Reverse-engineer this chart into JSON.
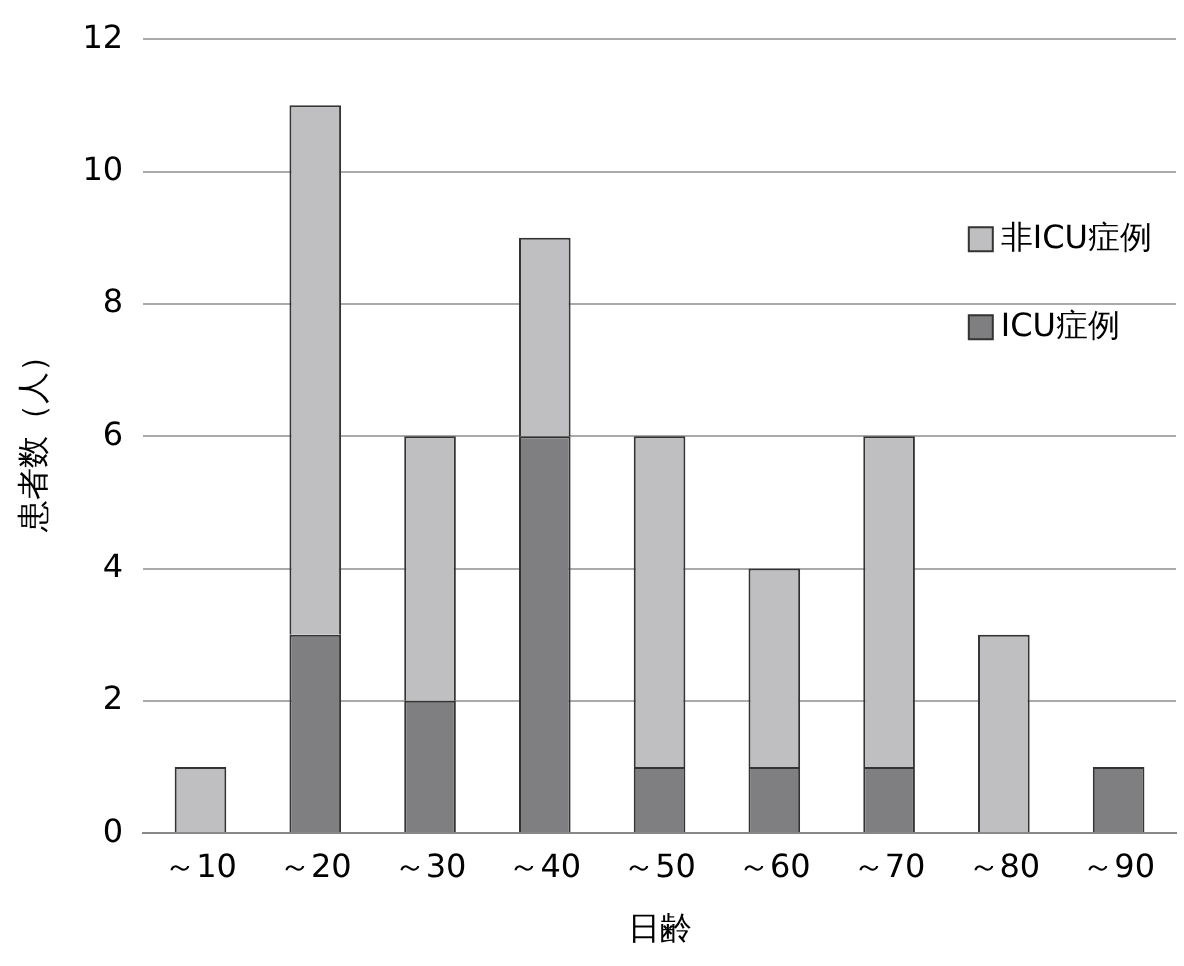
{
  "chart_data": {
    "type": "bar",
    "stacked": true,
    "xlabel": "日齢",
    "ylabel": "患者数（人）",
    "categories": [
      "～10",
      "～20",
      "～30",
      "～40",
      "～50",
      "～60",
      "～70",
      "～80",
      "～90"
    ],
    "series": [
      {
        "name": "ICU症例",
        "color": "#7f7f81",
        "values": [
          0,
          3,
          2,
          6,
          1,
          1,
          1,
          0,
          1
        ]
      },
      {
        "name": "非ICU症例",
        "color": "#bfbfc1",
        "values": [
          1,
          8,
          4,
          3,
          5,
          3,
          5,
          3,
          0
        ]
      }
    ],
    "ylim": [
      0,
      12
    ],
    "yticks": [
      0,
      2,
      4,
      6,
      8,
      10,
      12
    ],
    "grid": "y",
    "legend": "top right"
  }
}
